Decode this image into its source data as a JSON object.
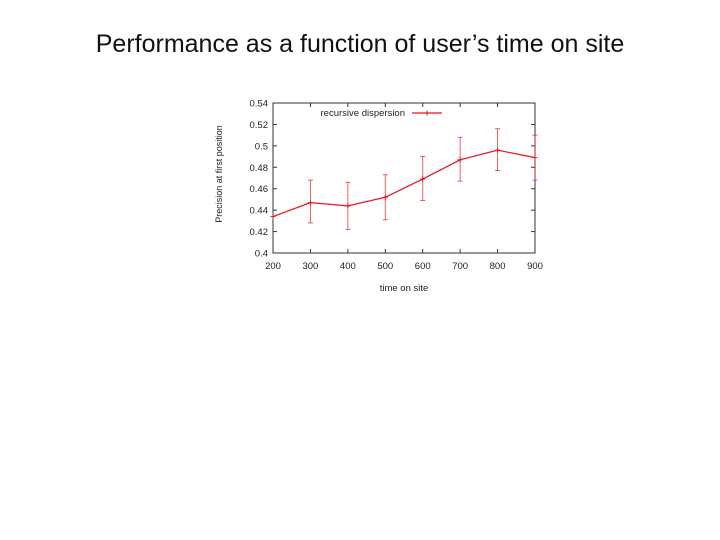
{
  "slide": {
    "title": "Performance as a function of user’s time on site"
  },
  "chart_data": {
    "type": "line",
    "xlabel": "time on site",
    "ylabel": "Precision at first position",
    "xlim": [
      200,
      900
    ],
    "ylim": [
      0.4,
      0.54
    ],
    "xticks": [
      "200",
      "300",
      "400",
      "500",
      "600",
      "700",
      "800",
      "900"
    ],
    "yticks": [
      "0.4",
      "0.42",
      "0.44",
      "0.46",
      "0.48",
      "0.5",
      "0.52",
      "0.54"
    ],
    "grid": false,
    "legend_position": "top",
    "series": [
      {
        "name": "recursive dispersion",
        "color": "#e8141e",
        "x": [
          200,
          300,
          400,
          500,
          600,
          700,
          800,
          900
        ],
        "y": [
          0.434,
          0.447,
          0.444,
          0.452,
          0.469,
          0.487,
          0.496,
          0.489
        ],
        "err_low": [
          0.434,
          0.428,
          0.422,
          0.431,
          0.449,
          0.467,
          0.477,
          0.468
        ],
        "err_high": [
          0.434,
          0.468,
          0.466,
          0.473,
          0.49,
          0.508,
          0.516,
          0.51
        ]
      }
    ]
  }
}
